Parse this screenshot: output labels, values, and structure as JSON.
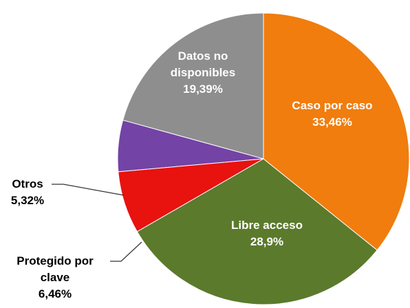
{
  "chart_data": {
    "type": "pie",
    "categories": [
      "Caso por caso",
      "Libre acceso",
      "Protegido por clave",
      "Otros",
      "Datos no disponibles"
    ],
    "values": [
      33.46,
      28.9,
      6.46,
      5.32,
      19.39
    ],
    "value_labels": [
      "33,46%",
      "28,9%",
      "6,46%",
      "5,32%",
      "19,39%"
    ],
    "colors": [
      "#f07d0e",
      "#5b7a2c",
      "#e8120f",
      "#7343a6",
      "#8e8e8e"
    ]
  }
}
